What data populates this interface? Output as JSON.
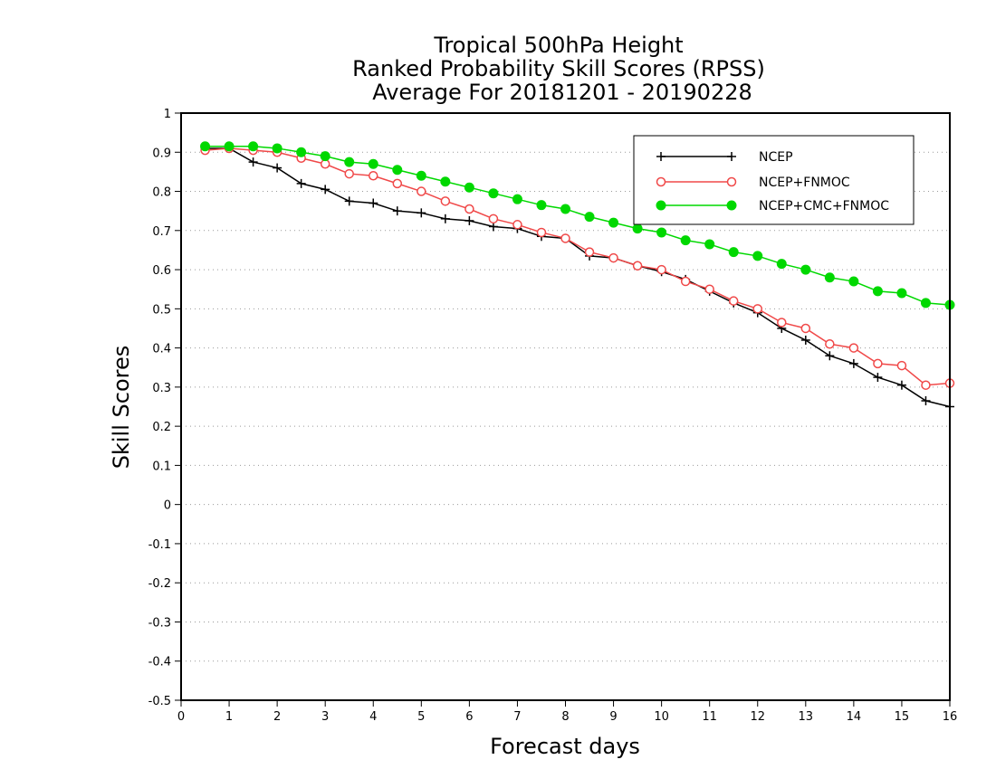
{
  "chart_data": {
    "type": "line",
    "title": [
      "Tropical 500hPa Height",
      "Ranked Probability Skill Scores (RPSS)",
      "Average For 20181201 - 20190228"
    ],
    "xlabel": "Forecast days",
    "ylabel": "Skill Scores",
    "xlim": [
      0,
      16
    ],
    "ylim": [
      -0.5,
      1
    ],
    "xticks": [
      0,
      1,
      2,
      3,
      4,
      5,
      6,
      7,
      8,
      9,
      10,
      11,
      12,
      13,
      14,
      15,
      16
    ],
    "xtick_labels": [
      "0",
      "1",
      "2",
      "3",
      "4",
      "5",
      "6",
      "7",
      "8",
      "9",
      "10",
      "11",
      "12",
      "13",
      "14",
      "15",
      "16"
    ],
    "yticks": [
      -0.5,
      -0.4,
      -0.3,
      -0.2,
      -0.1,
      0,
      0.1,
      0.2,
      0.3,
      0.4,
      0.5,
      0.6,
      0.7,
      0.8,
      0.9,
      1
    ],
    "ytick_labels": [
      "-0.5",
      "-0.4",
      "-0.3",
      "-0.2",
      "-0.1",
      "0",
      "0.1",
      "0.2",
      "0.3",
      "0.4",
      "0.5",
      "0.6",
      "0.7",
      "0.8",
      "0.9",
      "1"
    ],
    "grid": "horizontal dotted",
    "legend_position": "top-right",
    "x": [
      0.5,
      1,
      1.5,
      2,
      2.5,
      3,
      3.5,
      4,
      4.5,
      5,
      5.5,
      6,
      6.5,
      7,
      7.5,
      8,
      8.5,
      9,
      9.5,
      10,
      10.5,
      11,
      11.5,
      12,
      12.5,
      13,
      13.5,
      14,
      14.5,
      15,
      15.5,
      16
    ],
    "series": [
      {
        "name": "NCEP",
        "color": "#000000",
        "marker": "plus",
        "values": [
          0.91,
          0.91,
          0.875,
          0.86,
          0.82,
          0.805,
          0.775,
          0.77,
          0.75,
          0.745,
          0.73,
          0.725,
          0.71,
          0.705,
          0.685,
          0.68,
          0.635,
          0.63,
          0.61,
          0.595,
          0.575,
          0.545,
          0.515,
          0.49,
          0.45,
          0.42,
          0.38,
          0.36,
          0.325,
          0.305,
          0.265,
          0.25
        ]
      },
      {
        "name": "NCEP+FNMOC",
        "color": "#f04848",
        "marker": "open-circle",
        "values": [
          0.905,
          0.91,
          0.905,
          0.9,
          0.885,
          0.87,
          0.845,
          0.84,
          0.82,
          0.8,
          0.775,
          0.755,
          0.73,
          0.715,
          0.695,
          0.68,
          0.645,
          0.63,
          0.61,
          0.6,
          0.57,
          0.55,
          0.52,
          0.5,
          0.465,
          0.45,
          0.41,
          0.4,
          0.36,
          0.355,
          0.305,
          0.31
        ]
      },
      {
        "name": "NCEP+CMC+FNMOC",
        "color": "#00d800",
        "marker": "filled-circle",
        "values": [
          0.915,
          0.915,
          0.915,
          0.91,
          0.9,
          0.89,
          0.875,
          0.87,
          0.855,
          0.84,
          0.825,
          0.81,
          0.795,
          0.78,
          0.765,
          0.755,
          0.735,
          0.72,
          0.705,
          0.695,
          0.675,
          0.665,
          0.645,
          0.635,
          0.615,
          0.6,
          0.58,
          0.57,
          0.545,
          0.54,
          0.515,
          0.51
        ]
      }
    ]
  }
}
